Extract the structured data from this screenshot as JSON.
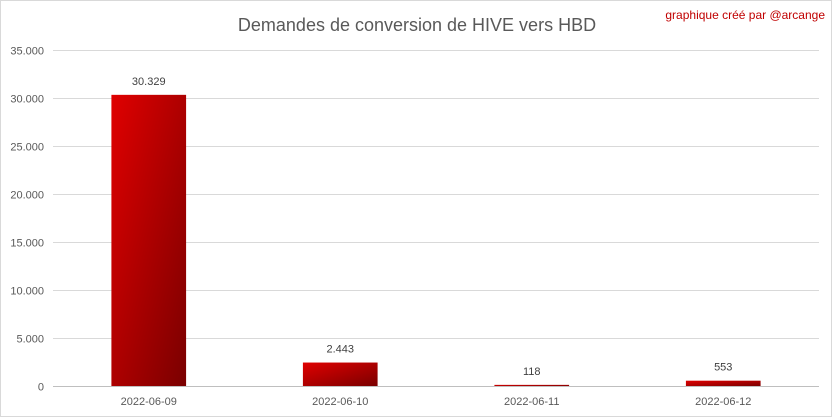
{
  "chart_data": {
    "type": "bar",
    "title": "Demandes de conversion de HIVE vers HBD",
    "credit": "graphique créé par @arcange",
    "categories": [
      "2022-06-09",
      "2022-06-10",
      "2022-06-11",
      "2022-06-12"
    ],
    "values": [
      30329,
      2443,
      118,
      553
    ],
    "value_labels": [
      "30.329",
      "2.443",
      "118",
      "553"
    ],
    "ylim": [
      0,
      35000
    ],
    "yticks": [
      0,
      5000,
      10000,
      15000,
      20000,
      25000,
      30000,
      35000
    ],
    "ytick_labels": [
      "0",
      "5.000",
      "10.000",
      "15.000",
      "20.000",
      "25.000",
      "30.000",
      "35.000"
    ],
    "xlabel": "",
    "ylabel": "",
    "grid": true,
    "legend": "none",
    "colors": {
      "bar_light": "#e00000",
      "bar_dark": "#7a0000",
      "credit": "#c00000"
    }
  }
}
